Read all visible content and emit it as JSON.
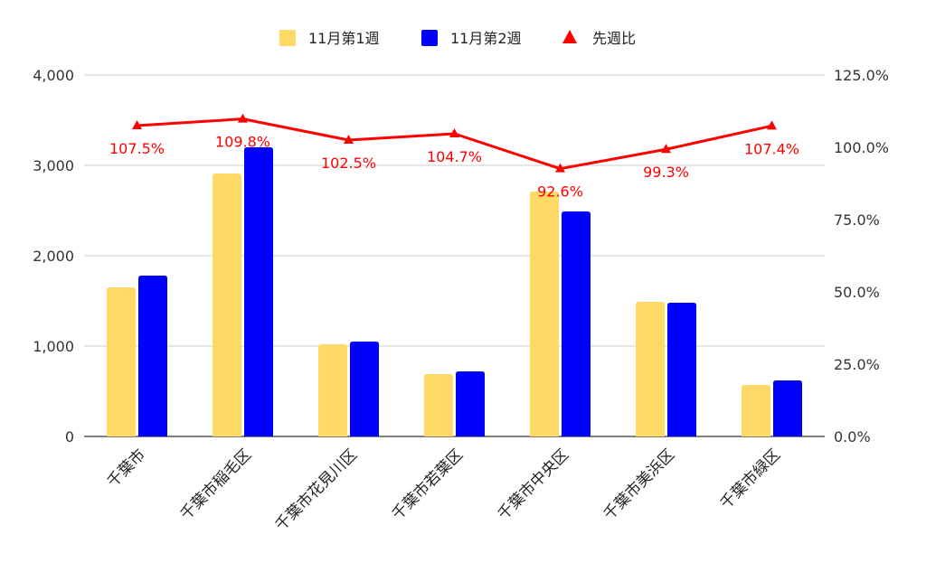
{
  "chart_data": {
    "type": "bar",
    "categories": [
      "千葉市",
      "千葉市稲毛区",
      "千葉市花見川区",
      "千葉市若葉区",
      "千葉市中央区",
      "千葉市美浜区",
      "千葉市緑区"
    ],
    "series": [
      {
        "name": "11月第1週",
        "type": "bar",
        "axis": "left",
        "color": "#FFD966",
        "values": [
          1650,
          2910,
          1020,
          690,
          2710,
          1490,
          570
        ]
      },
      {
        "name": "11月第2週",
        "type": "bar",
        "axis": "left",
        "color": "#0000FF",
        "values": [
          1780,
          3200,
          1050,
          720,
          2490,
          1480,
          620
        ]
      },
      {
        "name": "先週比",
        "type": "line",
        "axis": "right",
        "color": "#FF0000",
        "values": [
          107.5,
          109.8,
          102.5,
          104.7,
          92.6,
          99.3,
          107.4
        ],
        "labels": [
          "107.5%",
          "109.8%",
          "102.5%",
          "104.7%",
          "92.6%",
          "99.3%",
          "107.4%"
        ]
      }
    ],
    "y_left": {
      "range": [
        0,
        4000
      ],
      "ticks": [
        "0",
        "1,000",
        "2,000",
        "3,000",
        "4,000"
      ]
    },
    "y_right": {
      "range": [
        0,
        125
      ],
      "ticks": [
        "0.0%",
        "25.0%",
        "50.0%",
        "75.0%",
        "100.0%",
        "125.0%"
      ]
    },
    "legend": {
      "position": "top",
      "items": [
        "11月第1週",
        "11月第2週",
        "先週比"
      ]
    },
    "grid": true
  }
}
